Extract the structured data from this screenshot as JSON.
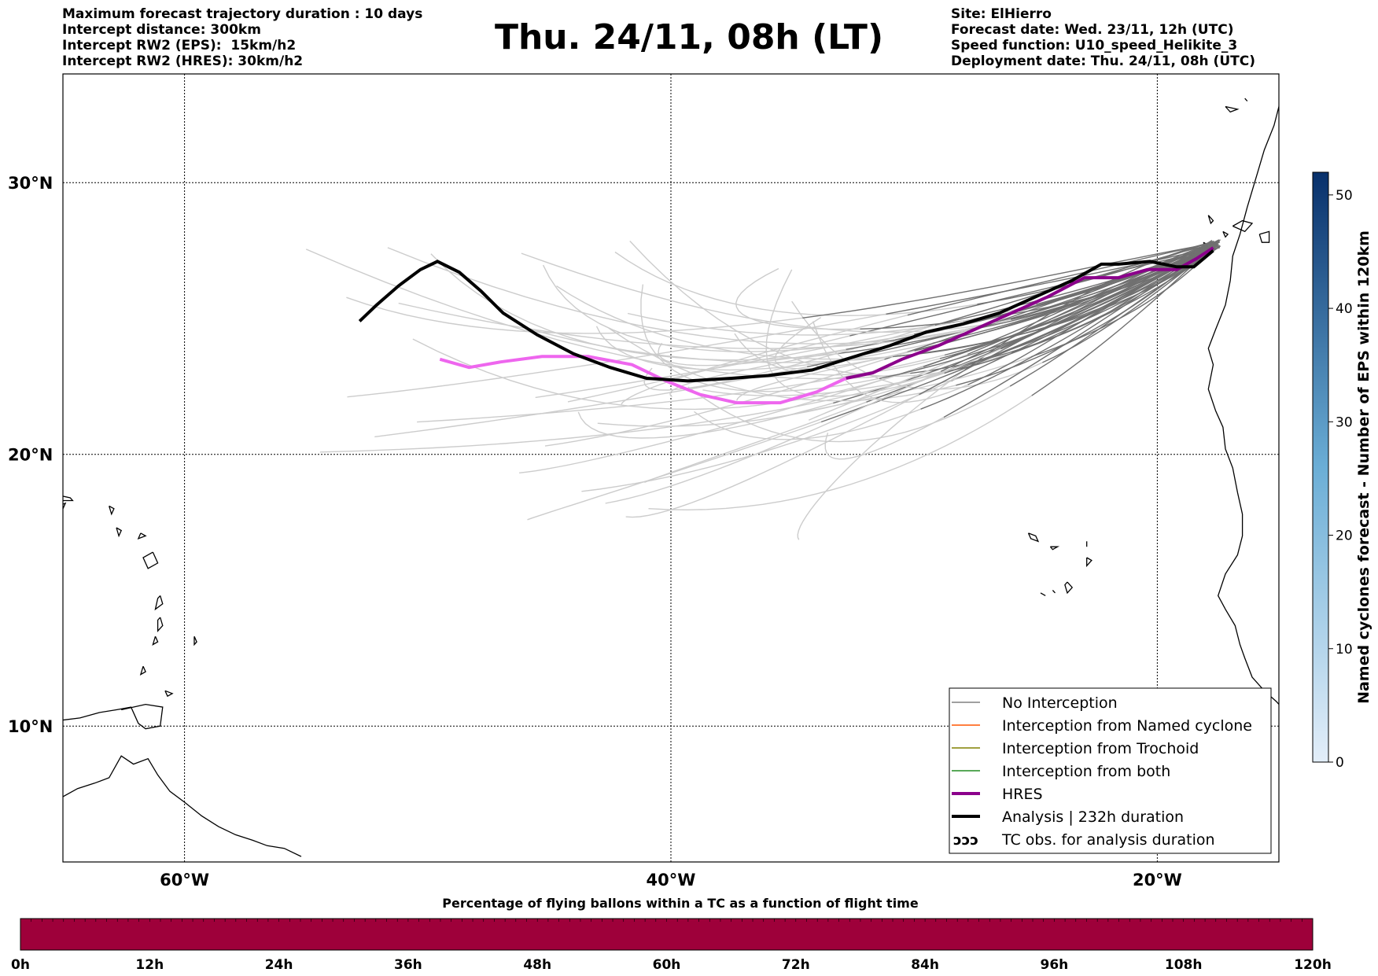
{
  "header": {
    "title": "Thu. 24/11, 08h (LT)",
    "left_lines": [
      "Maximum forecast trajectory duration : 10 days",
      "Intercept distance: 300km",
      "Intercept RW2 (EPS):  15km/h2",
      "Intercept RW2 (HRES): 30km/h2"
    ],
    "right_lines": [
      "Site: ElHierro",
      "Forecast date: Wed. 23/11, 12h (UTC)",
      "Speed function: U10_speed_Helikite_3",
      "Deployment date: Thu. 24/11, 08h (UTC)"
    ]
  },
  "map": {
    "lon_range": [
      -65,
      -15
    ],
    "lat_range": [
      5,
      34
    ],
    "lon_ticks": [
      {
        "lon": -60,
        "label": "60°W"
      },
      {
        "lon": -40,
        "label": "40°W"
      },
      {
        "lon": -20,
        "label": "20°W"
      }
    ],
    "lat_ticks": [
      {
        "lat": 30,
        "label": "30°N"
      },
      {
        "lat": 20,
        "label": "20°N"
      },
      {
        "lat": 10,
        "label": "10°N"
      }
    ],
    "colors": {
      "eps_light": "#cccccc",
      "eps_dark": "#707070",
      "hres_early": "#8b008b",
      "hres_late": "#ee66ee",
      "analysis": "#000000"
    }
  },
  "legend": {
    "items": [
      {
        "label": "No Interception",
        "color": "#808080",
        "style": "thin"
      },
      {
        "label": "Interception from Named cyclone",
        "color": "#ff5500",
        "style": "thin"
      },
      {
        "label": "Interception from Trochoid",
        "color": "#808000",
        "style": "thin"
      },
      {
        "label": "Interception from both",
        "color": "#228b22",
        "style": "thin"
      },
      {
        "label": "HRES",
        "color": "#8b008b",
        "style": "thick"
      },
      {
        "label": "Analysis | 232h duration",
        "color": "#000000",
        "style": "thick"
      },
      {
        "label": "TC obs. for analysis duration",
        "color": "#000000",
        "style": "symbol"
      }
    ]
  },
  "colorbar": {
    "label": "Named cyclones forecast - Number of EPS within 120km",
    "ticks": [
      "0",
      "10",
      "20",
      "30",
      "40",
      "50"
    ],
    "min": 0,
    "max": 52,
    "color_low": "#e3eef9",
    "color_high": "#08306b"
  },
  "timebar": {
    "label": "Percentage of flying ballons within a TC as a function of flight time",
    "ticks": [
      "0h",
      "12h",
      "24h",
      "36h",
      "48h",
      "60h",
      "72h",
      "84h",
      "96h",
      "108h",
      "120h"
    ],
    "fill_color": "#9e003a",
    "percent_in_tc": 0
  }
}
